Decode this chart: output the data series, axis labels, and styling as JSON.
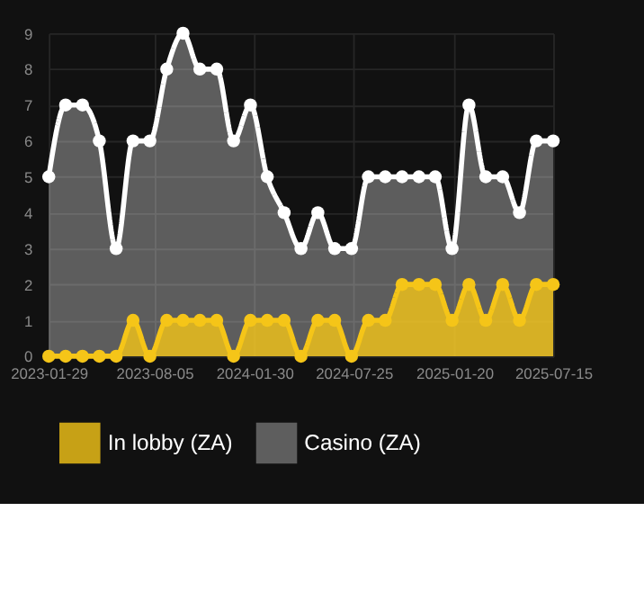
{
  "chart_data": {
    "type": "area",
    "x": [
      "2023-01-29",
      "2023-02-28",
      "2023-03-30",
      "2023-04-29",
      "2023-05-29",
      "2023-06-28",
      "2023-07-28",
      "2023-08-27",
      "2023-09-25",
      "2023-10-25",
      "2023-11-24",
      "2023-12-24",
      "2024-01-23",
      "2024-02-22",
      "2024-03-23",
      "2024-04-22",
      "2024-05-22",
      "2024-06-21",
      "2024-07-21",
      "2024-08-20",
      "2024-09-19",
      "2024-10-19",
      "2024-11-18",
      "2024-12-17",
      "2025-01-16",
      "2025-02-15",
      "2025-03-17",
      "2025-04-16",
      "2025-05-16",
      "2025-06-15",
      "2025-07-15"
    ],
    "series": [
      {
        "name": "In lobby (ZA)",
        "color": "#f5c518",
        "values": [
          0,
          0,
          0,
          0,
          0,
          1,
          0,
          1,
          1,
          1,
          1,
          0,
          1,
          1,
          1,
          0,
          1,
          1,
          0,
          1,
          1,
          2,
          2,
          2,
          1,
          2,
          1,
          2,
          1,
          2,
          2
        ]
      },
      {
        "name": "Casino (ZA)",
        "color": "#ffffff",
        "values": [
          5,
          7,
          7,
          6,
          3,
          6,
          6,
          8,
          9,
          8,
          8,
          6,
          7,
          5,
          4,
          3,
          4,
          3,
          3,
          5,
          5,
          5,
          5,
          5,
          3,
          7,
          5,
          5,
          4,
          6,
          6
        ]
      }
    ],
    "xlim": [
      "2023-01-29",
      "2025-07-15"
    ],
    "xticks": [
      "2023-01-29",
      "2023-08-05",
      "2024-01-30",
      "2024-07-25",
      "2025-01-20",
      "2025-07-15"
    ],
    "ylim": [
      0,
      9
    ],
    "yticks": [
      0,
      1,
      2,
      3,
      4,
      5,
      6,
      7,
      8,
      9
    ],
    "grid": true,
    "legend": "bottom",
    "marker": "circle",
    "line_style": "solid"
  }
}
